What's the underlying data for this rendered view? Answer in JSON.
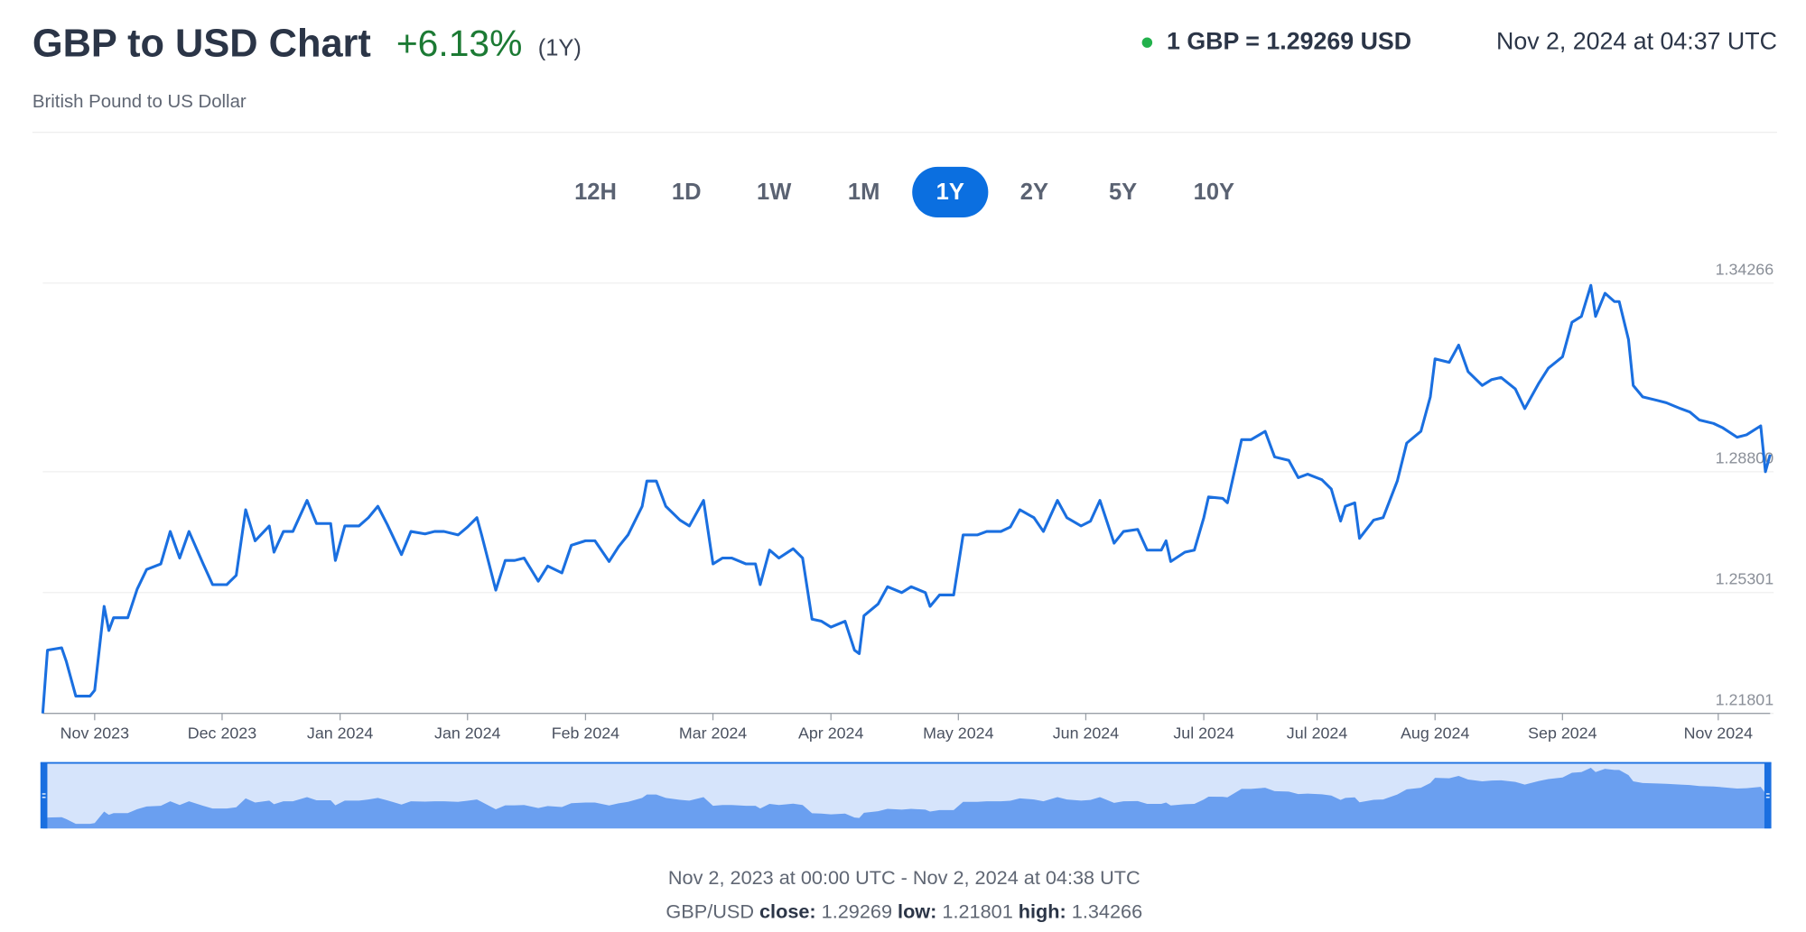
{
  "header": {
    "title": "GBP to USD Chart",
    "change": "+6.13%",
    "change_period": "(1Y)",
    "subtitle": "British Pound to US Dollar",
    "rate": "1 GBP = 1.29269 USD",
    "timestamp": "Nov 2, 2024 at 04:37 UTC"
  },
  "ranges": [
    "12H",
    "1D",
    "1W",
    "1M",
    "1Y",
    "2Y",
    "5Y",
    "10Y"
  ],
  "chart_data": {
    "type": "line",
    "color": "#1a6fe0",
    "grid": true,
    "xlim": [
      0,
      366
    ],
    "ylim": [
      1.21801,
      1.34266
    ],
    "yticks": [
      1.21801,
      1.25301,
      {
        "value": 1.288,
        "label": "1.28800"
      },
      1.34266
    ],
    "xticks": [
      {
        "value": 11,
        "label": "Nov 2023"
      },
      {
        "value": 38,
        "label": "Dec 2023"
      },
      {
        "value": 63,
        "label": "Jan 2024"
      },
      {
        "value": 90,
        "label": "Jan 2024"
      },
      {
        "value": 115,
        "label": "Feb 2024"
      },
      {
        "value": 142,
        "label": "Mar 2024"
      },
      {
        "value": 167,
        "label": "Apr 2024"
      },
      {
        "value": 194,
        "label": "May 2024"
      },
      {
        "value": 221,
        "label": "Jun 2024"
      },
      {
        "value": 246,
        "label": "Jul 2024"
      },
      {
        "value": 270,
        "label": "Jul 2024"
      },
      {
        "value": 295,
        "label": "Aug 2024"
      },
      {
        "value": 322,
        "label": "Sep 2024"
      },
      {
        "value": 355,
        "label": "Nov 2024"
      }
    ],
    "x": [
      0,
      1,
      4,
      5,
      7,
      10,
      11,
      13,
      14,
      15,
      18,
      20,
      22,
      25,
      27,
      29,
      31,
      34,
      36,
      39,
      41,
      43,
      45,
      48,
      49,
      51,
      53,
      56,
      58,
      61,
      62,
      64,
      67,
      69,
      71,
      73,
      76,
      78,
      81,
      83,
      85,
      88,
      90,
      92,
      93,
      96,
      98,
      100,
      102,
      105,
      107,
      110,
      112,
      115,
      117,
      120,
      122,
      124,
      127,
      128,
      130,
      132,
      135,
      137,
      140,
      142,
      144,
      146,
      149,
      151,
      152,
      154,
      156,
      159,
      161,
      163,
      165,
      167,
      170,
      172,
      173,
      174,
      177,
      179,
      182,
      184,
      187,
      188,
      190,
      193,
      195,
      198,
      200,
      203,
      205,
      207,
      210,
      212,
      215,
      217,
      220,
      222,
      224,
      227,
      229,
      232,
      234,
      237,
      238,
      239,
      242,
      244,
      246,
      247,
      250,
      251,
      254,
      256,
      259,
      261,
      264,
      266,
      268,
      271,
      273,
      275,
      276,
      278,
      279,
      282,
      284,
      287,
      289,
      292,
      294,
      295,
      298,
      300,
      302,
      305,
      307,
      309,
      312,
      314,
      317,
      319,
      322,
      324,
      326,
      328,
      329,
      331,
      333,
      334,
      336,
      337,
      339,
      342,
      344,
      347,
      349,
      351,
      354,
      356,
      359,
      361,
      364,
      365,
      366
    ],
    "values": [
      1.218,
      1.2363,
      1.237,
      1.233,
      1.223,
      1.223,
      1.2247,
      1.249,
      1.242,
      1.2457,
      1.2457,
      1.254,
      1.2597,
      1.2613,
      1.2707,
      1.263,
      1.2707,
      1.2613,
      1.2553,
      1.2553,
      1.258,
      1.277,
      1.268,
      1.2723,
      1.2647,
      1.2707,
      1.2707,
      1.2797,
      1.273,
      1.273,
      1.2623,
      1.2723,
      1.2723,
      1.2747,
      1.278,
      1.2727,
      1.264,
      1.2707,
      1.27,
      1.2707,
      1.2707,
      1.2697,
      1.272,
      1.2747,
      1.2697,
      1.2537,
      1.2623,
      1.2623,
      1.263,
      1.2563,
      1.2607,
      1.2587,
      1.2667,
      1.268,
      1.268,
      1.262,
      1.2663,
      1.2697,
      1.278,
      1.2853,
      1.2853,
      1.278,
      1.274,
      1.2723,
      1.2797,
      1.2613,
      1.263,
      1.263,
      1.2613,
      1.2613,
      1.2553,
      1.2653,
      1.263,
      1.2657,
      1.263,
      1.2453,
      1.2447,
      1.243,
      1.2447,
      1.2363,
      1.2353,
      1.2463,
      1.2497,
      1.2547,
      1.253,
      1.2547,
      1.253,
      1.249,
      1.2523,
      1.2523,
      1.2697,
      1.2697,
      1.2707,
      1.2707,
      1.272,
      1.277,
      1.2747,
      1.2707,
      1.2797,
      1.2747,
      1.2723,
      1.2737,
      1.2797,
      1.2673,
      1.2707,
      1.2713,
      1.2653,
      1.2653,
      1.268,
      1.262,
      1.2647,
      1.2653,
      1.2747,
      1.2807,
      1.2803,
      1.279,
      1.2973,
      1.2973,
      1.2997,
      1.2923,
      1.2913,
      1.2863,
      1.2873,
      1.2857,
      1.283,
      1.2737,
      1.278,
      1.279,
      1.2687,
      1.274,
      1.2747,
      1.2853,
      1.2963,
      1.2997,
      1.3097,
      1.3207,
      1.3197,
      1.3247,
      1.317,
      1.313,
      1.3147,
      1.3153,
      1.312,
      1.3063,
      1.3137,
      1.318,
      1.3213,
      1.3313,
      1.333,
      1.342,
      1.333,
      1.3397,
      1.3373,
      1.3373,
      1.3263,
      1.313,
      1.3097,
      1.3087,
      1.308,
      1.3063,
      1.3053,
      1.303,
      1.302,
      1.3007,
      1.298,
      1.2987,
      1.3013,
      1.288,
      1.293
    ]
  },
  "footer": {
    "period": "Nov 2, 2023 at 00:00 UTC - Nov 2, 2024 at 04:38 UTC",
    "pair": "GBP/USD",
    "close_label": "close:",
    "close": "1.29269",
    "low_label": "low:",
    "low": "1.21801",
    "high_label": "high:",
    "high": "1.34266"
  }
}
